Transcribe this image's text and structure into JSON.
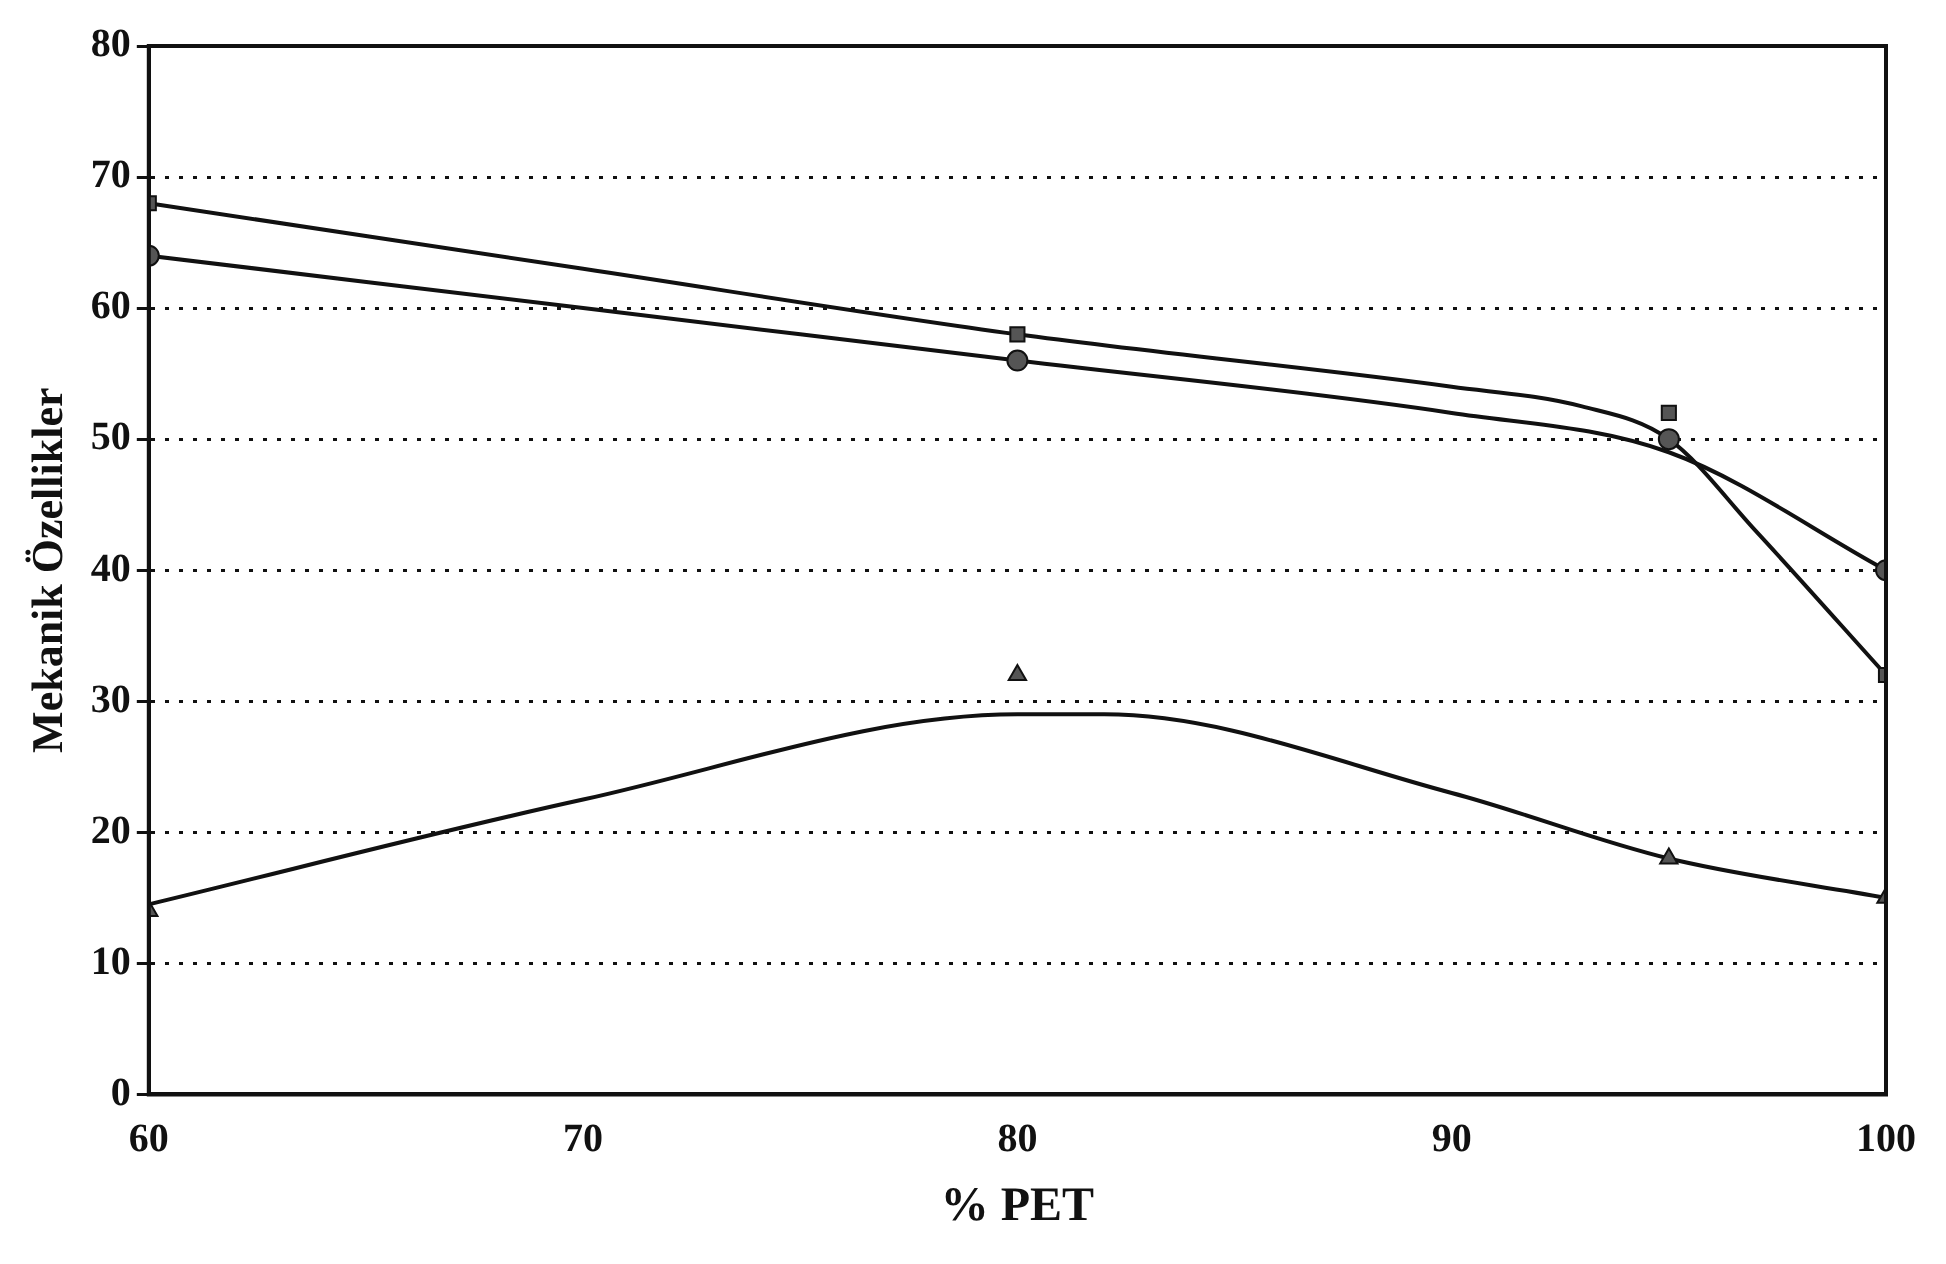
{
  "chart_data": {
    "type": "scatter",
    "xlabel": "% PET",
    "ylabel": "Mekanik Özellikler",
    "xlim": [
      60,
      100
    ],
    "ylim": [
      0,
      80
    ],
    "xticks": [
      60,
      70,
      80,
      90,
      100
    ],
    "yticks": [
      0,
      10,
      20,
      30,
      40,
      50,
      60,
      70,
      80
    ],
    "grid": "y",
    "legend": false,
    "series": [
      {
        "type": "scatter",
        "marker": "square",
        "color": "#555555",
        "x": [
          60,
          80,
          95,
          100
        ],
        "values": [
          68,
          58,
          52,
          32
        ]
      },
      {
        "type": "scatter",
        "marker": "circle",
        "color": "#555555",
        "x": [
          60,
          80,
          95,
          100
        ],
        "values": [
          64,
          56,
          50,
          40
        ]
      },
      {
        "type": "scatter",
        "marker": "triangle",
        "color": "#555555",
        "x": [
          60,
          80,
          95,
          100
        ],
        "values": [
          14,
          32,
          18,
          15
        ]
      },
      {
        "type": "line",
        "marker": "none",
        "color": "#111111",
        "x": [
          60,
          70,
          80,
          90,
          93,
          95,
          97,
          100
        ],
        "values": [
          68,
          63,
          58,
          54,
          52.5,
          50,
          43,
          32
        ]
      },
      {
        "type": "line",
        "marker": "none",
        "color": "#111111",
        "x": [
          60,
          70,
          80,
          90,
          95,
          100
        ],
        "values": [
          64,
          60,
          56,
          52,
          49,
          40
        ]
      },
      {
        "type": "line",
        "marker": "none",
        "color": "#111111",
        "x": [
          60,
          70,
          80,
          82,
          90,
          95,
          100
        ],
        "values": [
          14.5,
          22.5,
          29,
          29,
          23,
          18,
          15
        ]
      }
    ]
  }
}
